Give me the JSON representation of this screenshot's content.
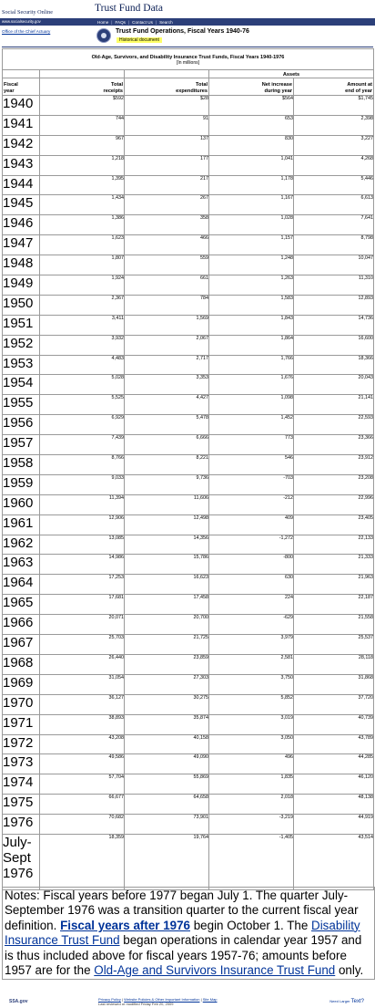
{
  "banner": {
    "org": "Social Security Online",
    "title": "Trust Fund Data",
    "url": "www.socialsecurity.gov",
    "nav": [
      "Home",
      "FAQs",
      "Contact Us",
      "Search"
    ]
  },
  "sidebar": {
    "office_link": "Office of the Chief Actuary"
  },
  "header": {
    "title": "Trust Fund Operations, Fiscal Years 1940-76",
    "badge": "Historical document"
  },
  "table": {
    "title": "Old-Age, Survivors, and Disability Insurance Trust Funds, Fiscal Years 1940-1976",
    "subtitle": "[In millions]",
    "assets_group": "Assets",
    "headers": {
      "year": [
        "Fiscal",
        "year"
      ],
      "receipts": [
        "Total",
        "receipts"
      ],
      "expenditures": [
        "Total",
        "expenditures"
      ],
      "net": [
        "Net increase",
        "during year"
      ],
      "amount": [
        "Amount at",
        "end of year"
      ]
    },
    "rows": [
      {
        "year": "1940",
        "receipts": "$592",
        "expenditures": "$28",
        "net": "$564",
        "amount": "$1,745"
      },
      {
        "year": "1941",
        "receipts": "744",
        "expenditures": "91",
        "net": "653",
        "amount": "2,398"
      },
      {
        "year": "1942",
        "receipts": "967",
        "expenditures": "137",
        "net": "830",
        "amount": "3,227"
      },
      {
        "year": "1943",
        "receipts": "1,218",
        "expenditures": "177",
        "net": "1,041",
        "amount": "4,268"
      },
      {
        "year": "1944",
        "receipts": "1,395",
        "expenditures": "217",
        "net": "1,178",
        "amount": "5,446"
      },
      {
        "year": "1945",
        "receipts": "1,434",
        "expenditures": "267",
        "net": "1,167",
        "amount": "6,613"
      },
      {
        "year": "1946",
        "receipts": "1,386",
        "expenditures": "358",
        "net": "1,028",
        "amount": "7,641"
      },
      {
        "year": "1947",
        "receipts": "1,623",
        "expenditures": "466",
        "net": "1,157",
        "amount": "8,798"
      },
      {
        "year": "1948",
        "receipts": "1,807",
        "expenditures": "559",
        "net": "1,248",
        "amount": "10,047"
      },
      {
        "year": "1949",
        "receipts": "1,924",
        "expenditures": "661",
        "net": "1,263",
        "amount": "11,310"
      },
      {
        "year": "1950",
        "receipts": "2,367",
        "expenditures": "784",
        "net": "1,583",
        "amount": "12,893"
      },
      {
        "year": "1951",
        "receipts": "3,411",
        "expenditures": "1,569",
        "net": "1,843",
        "amount": "14,736"
      },
      {
        "year": "1952",
        "receipts": "3,932",
        "expenditures": "2,067",
        "net": "1,864",
        "amount": "16,600"
      },
      {
        "year": "1953",
        "receipts": "4,483",
        "expenditures": "2,717",
        "net": "1,766",
        "amount": "18,366"
      },
      {
        "year": "1954",
        "receipts": "5,028",
        "expenditures": "3,353",
        "net": "1,676",
        "amount": "20,043"
      },
      {
        "year": "1955",
        "receipts": "5,525",
        "expenditures": "4,427",
        "net": "1,098",
        "amount": "21,141"
      },
      {
        "year": "1956",
        "receipts": "6,929",
        "expenditures": "5,478",
        "net": "1,452",
        "amount": "22,593"
      },
      {
        "year": "1957",
        "receipts": "7,439",
        "expenditures": "6,666",
        "net": "773",
        "amount": "23,366"
      },
      {
        "year": "1958",
        "receipts": "8,766",
        "expenditures": "8,221",
        "net": "546",
        "amount": "23,912"
      },
      {
        "year": "1959",
        "receipts": "9,033",
        "expenditures": "9,736",
        "net": "-703",
        "amount": "23,208"
      },
      {
        "year": "1960",
        "receipts": "11,394",
        "expenditures": "11,606",
        "net": "-212",
        "amount": "22,996"
      },
      {
        "year": "1961",
        "receipts": "12,906",
        "expenditures": "12,498",
        "net": "409",
        "amount": "23,405"
      },
      {
        "year": "1962",
        "receipts": "13,085",
        "expenditures": "14,356",
        "net": "-1,272",
        "amount": "22,133"
      },
      {
        "year": "1963",
        "receipts": "14,986",
        "expenditures": "15,786",
        "net": "-800",
        "amount": "21,333"
      },
      {
        "year": "1964",
        "receipts": "17,253",
        "expenditures": "16,623",
        "net": "630",
        "amount": "21,963"
      },
      {
        "year": "1965",
        "receipts": "17,681",
        "expenditures": "17,458",
        "net": "224",
        "amount": "22,187"
      },
      {
        "year": "1966",
        "receipts": "20,071",
        "expenditures": "20,700",
        "net": "-629",
        "amount": "21,558"
      },
      {
        "year": "1967",
        "receipts": "25,703",
        "expenditures": "21,725",
        "net": "3,979",
        "amount": "25,537"
      },
      {
        "year": "1968",
        "receipts": "26,440",
        "expenditures": "23,859",
        "net": "2,581",
        "amount": "28,118"
      },
      {
        "year": "1969",
        "receipts": "31,054",
        "expenditures": "27,303",
        "net": "3,750",
        "amount": "31,868"
      },
      {
        "year": "1970",
        "receipts": "36,127",
        "expenditures": "30,275",
        "net": "5,852",
        "amount": "37,720"
      },
      {
        "year": "1971",
        "receipts": "38,893",
        "expenditures": "35,874",
        "net": "3,019",
        "amount": "40,739"
      },
      {
        "year": "1972",
        "receipts": "43,208",
        "expenditures": "40,158",
        "net": "3,050",
        "amount": "43,789"
      },
      {
        "year": "1973",
        "receipts": "49,586",
        "expenditures": "49,090",
        "net": "496",
        "amount": "44,285"
      },
      {
        "year": "1974",
        "receipts": "57,704",
        "expenditures": "55,869",
        "net": "1,835",
        "amount": "46,120"
      },
      {
        "year": "1975",
        "receipts": "66,677",
        "expenditures": "64,658",
        "net": "2,018",
        "amount": "48,138"
      },
      {
        "year": "1976",
        "receipts": "70,682",
        "expenditures": "73,901",
        "net": "-3,219",
        "amount": "44,919"
      }
    ],
    "last_row": {
      "year_lines": [
        "July-",
        "Sept",
        "1976"
      ],
      "receipts": "18,359",
      "expenditures": "19,764",
      "net": "-1,405",
      "amount": "43,514"
    }
  },
  "notes": {
    "text1": "Notes: Fiscal years before 1977 began July 1. The quarter July-September 1976 was a transition quarter to the current fiscal year definition.",
    "link1": "Fiscal years after 1976",
    "text2": "begin October 1. The",
    "link2": "Disability Insurance Trust Fund",
    "text3": "began operations in calendar year 1957 and is thus included above for fiscal years 1957-76; amounts before 1957 are for the",
    "link3": "Old-Age and Survivors Insurance Trust Fund",
    "text4": "only."
  },
  "footer": {
    "logo": "SSA.gov",
    "links": [
      "Privacy Policy",
      "Website Policies & Other Important Information",
      "Site Map"
    ],
    "modified": "Last reviewed or modified Friday Feb 20, 2009",
    "need": "Need",
    "larger": "Larger",
    "text": "Text?"
  }
}
